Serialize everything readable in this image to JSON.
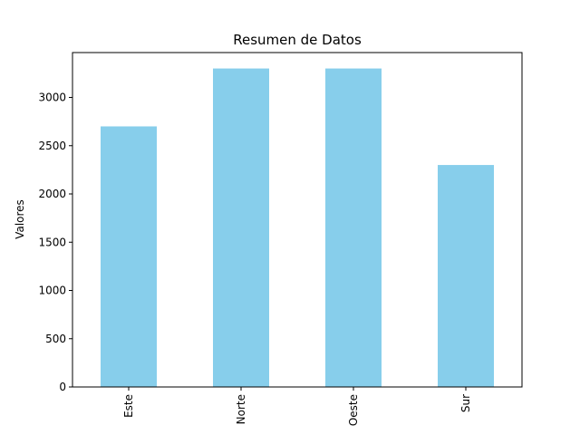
{
  "chart_data": {
    "type": "bar",
    "title": "Resumen de Datos",
    "xlabel": "",
    "ylabel": "Valores",
    "categories": [
      "Este",
      "Norte",
      "Oeste",
      "Sur"
    ],
    "values": [
      2700,
      3300,
      3300,
      2300
    ],
    "ylim": [
      0,
      3465
    ],
    "yticks": [
      0,
      500,
      1000,
      1500,
      2000,
      2500,
      3000
    ],
    "bar_color": "#87CEEB",
    "grid": false,
    "legend": "none"
  }
}
